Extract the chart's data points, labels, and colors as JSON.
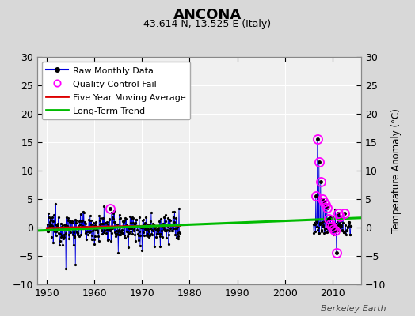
{
  "title": "ANCONA",
  "subtitle": "43.614 N, 13.525 E (Italy)",
  "credit": "Berkeley Earth",
  "ylabel_right": "Temperature Anomaly (°C)",
  "xlim": [
    1948,
    2016
  ],
  "ylim": [
    -10,
    30
  ],
  "yticks": [
    -10,
    -5,
    0,
    5,
    10,
    15,
    20,
    25,
    30
  ],
  "xticks": [
    1950,
    1960,
    1970,
    1980,
    1990,
    2000,
    2010
  ],
  "bg_color": "#d8d8d8",
  "plot_bg_color": "#f0f0f0",
  "raw_color": "#0000dd",
  "raw_dot_color": "#000000",
  "qc_color": "#ff00ff",
  "ma_color": "#dd0000",
  "trend_color": "#00bb00",
  "trend_x": [
    1948,
    2016
  ],
  "trend_y": [
    -0.55,
    1.7
  ]
}
